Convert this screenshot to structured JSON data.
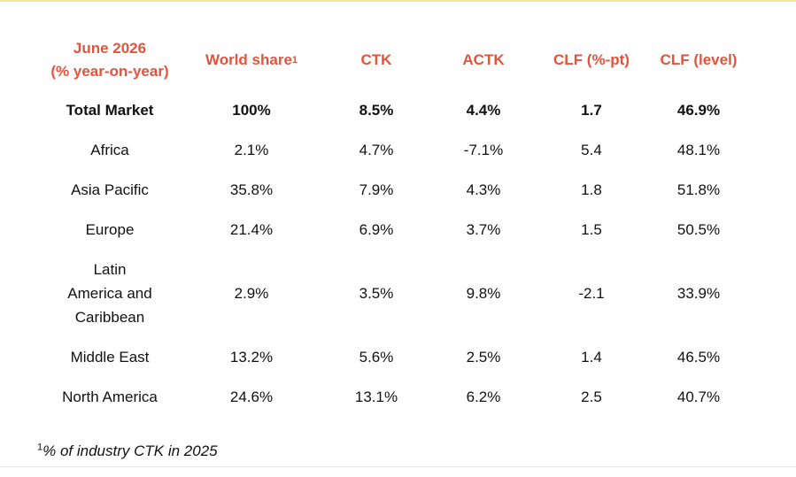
{
  "header": {
    "period_line1": "June 2026",
    "period_line2": "(% year-on-year)",
    "world_share": "World share",
    "world_share_sup": "1",
    "ctk": "CTK",
    "actk": "ACTK",
    "clf_pt": "CLF (%-pt)",
    "clf_level": "CLF (level)"
  },
  "rows": [
    {
      "region": "Total Market",
      "world_share": "100%",
      "ctk": "8.5%",
      "actk": "4.4%",
      "clf_pt": "1.7",
      "clf_level": "46.9%"
    },
    {
      "region": "Africa",
      "world_share": "2.1%",
      "ctk": "4.7%",
      "actk": "-7.1%",
      "clf_pt": "5.4",
      "clf_level": "48.1%"
    },
    {
      "region": "Asia Pacific",
      "world_share": "35.8%",
      "ctk": "7.9%",
      "actk": "4.3%",
      "clf_pt": "1.8",
      "clf_level": "51.8%"
    },
    {
      "region": "Europe",
      "world_share": "21.4%",
      "ctk": "6.9%",
      "actk": "3.7%",
      "clf_pt": "1.5",
      "clf_level": "50.5%"
    },
    {
      "region_line1": "Latin",
      "region_line2": "America and",
      "region_line3": "Caribbean",
      "world_share": "2.9%",
      "ctk": "3.5%",
      "actk": "9.8%",
      "clf_pt": "-2.1",
      "clf_level": "33.9%"
    },
    {
      "region": "Middle East",
      "world_share": "13.2%",
      "ctk": "5.6%",
      "actk": "2.5%",
      "clf_pt": "1.4",
      "clf_level": "46.5%"
    },
    {
      "region": "North America",
      "world_share": "24.6%",
      "ctk": "13.1%",
      "actk": "6.2%",
      "clf_pt": "2.5",
      "clf_level": "40.7%"
    }
  ],
  "footnote": {
    "sup": "1",
    "text": "% of industry CTK in 2025"
  },
  "colors": {
    "header_accent": "#e4533b",
    "top_rule": "#f2e6a6"
  }
}
